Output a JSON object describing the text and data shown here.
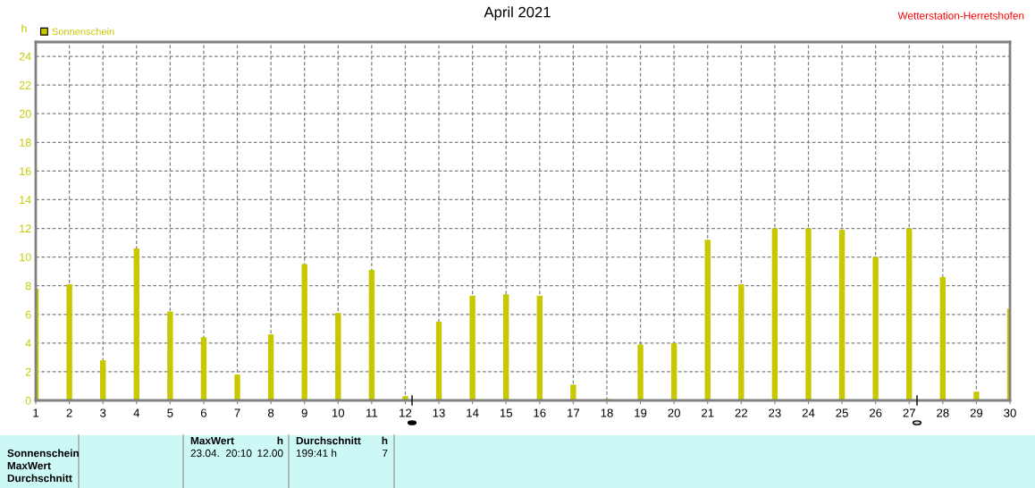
{
  "chart_data": {
    "type": "bar",
    "title": "April 2021",
    "ylabel": "h",
    "x": [
      1,
      2,
      3,
      4,
      5,
      6,
      7,
      8,
      9,
      10,
      11,
      12,
      13,
      14,
      15,
      16,
      17,
      18,
      19,
      20,
      21,
      22,
      23,
      24,
      25,
      26,
      27,
      28,
      29,
      30
    ],
    "series": [
      {
        "name": "Sonnenschein",
        "color": "#c8c800",
        "values": [
          7.8,
          8.1,
          2.8,
          10.6,
          6.2,
          4.4,
          1.8,
          4.6,
          9.5,
          6.1,
          9.1,
          0.3,
          5.5,
          7.3,
          7.4,
          7.3,
          1.1,
          0.1,
          3.9,
          4.0,
          11.2,
          8.1,
          12.0,
          12.0,
          11.9,
          10.0,
          12.0,
          8.6,
          0.6,
          6.4
        ]
      }
    ],
    "xlim": [
      1,
      30
    ],
    "xticks": [
      1,
      2,
      3,
      4,
      5,
      6,
      7,
      8,
      9,
      10,
      11,
      12,
      13,
      14,
      15,
      16,
      17,
      18,
      19,
      20,
      21,
      22,
      23,
      24,
      25,
      26,
      27,
      28,
      29,
      30
    ],
    "ylim": [
      0,
      25
    ],
    "yticks": [
      0,
      2,
      4,
      6,
      8,
      10,
      12,
      14,
      16,
      18,
      20,
      22,
      24
    ],
    "grid": true,
    "legend": "top left",
    "annotations": [
      "Wetterstation-Herretshofen",
      "Sonnenschein",
      "MaxWert",
      "Durchschnitt",
      "MaxWert",
      "h",
      "23.04.  20:10",
      "12.00",
      "Durchschnitt",
      "h",
      "199:41 h",
      "7"
    ]
  }
}
